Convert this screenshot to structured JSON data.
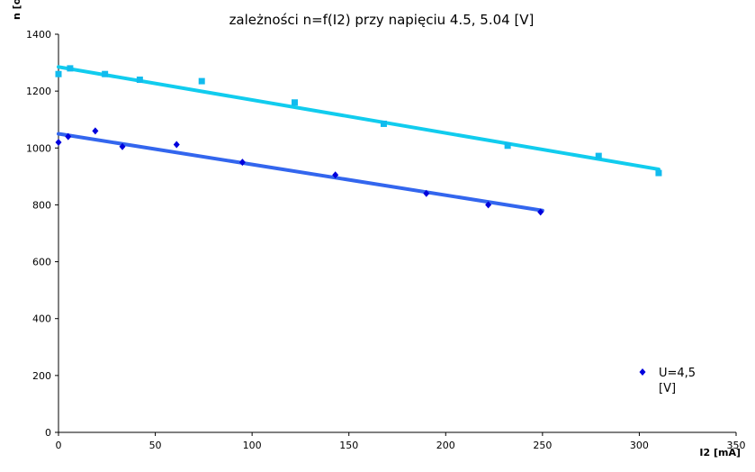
{
  "chart_data": {
    "type": "scatter",
    "title": "zależności n=f(I2) przy napięciu 4.5, 5.04 [V]",
    "xlabel": "I2 [mA]",
    "ylabel": "n [o",
    "xlim": [
      0,
      350
    ],
    "ylim": [
      0,
      1400
    ],
    "x_ticks": [
      0,
      50,
      100,
      150,
      200,
      250,
      300,
      350
    ],
    "y_ticks": [
      0,
      200,
      400,
      600,
      800,
      1000,
      1200,
      1400
    ],
    "grid": false,
    "legend_position": "right",
    "series": [
      {
        "name": "U=4,5 [V]",
        "legend_lines": [
          "U=4,5",
          "[V]"
        ],
        "marker": "diamond",
        "color": "#0000dd",
        "trend_color": "#3366ee",
        "trend": [
          [
            0,
            1050
          ],
          [
            250,
            780
          ]
        ],
        "points": [
          [
            0,
            1020
          ],
          [
            5,
            1040
          ],
          [
            19,
            1060
          ],
          [
            33,
            1005
          ],
          [
            61,
            1012
          ],
          [
            95,
            950
          ],
          [
            143,
            905
          ],
          [
            190,
            840
          ],
          [
            222,
            800
          ],
          [
            249,
            775
          ]
        ]
      },
      {
        "marker": "square",
        "color": "#11bbee",
        "trend_color": "#11ccee",
        "trend": [
          [
            0,
            1285
          ],
          [
            310,
            925
          ]
        ],
        "points": [
          [
            0,
            1260
          ],
          [
            6,
            1280
          ],
          [
            24,
            1260
          ],
          [
            42,
            1240
          ],
          [
            74,
            1235
          ],
          [
            122,
            1160
          ],
          [
            168,
            1085
          ],
          [
            232,
            1008
          ],
          [
            279,
            972
          ],
          [
            310,
            912
          ]
        ]
      }
    ]
  }
}
